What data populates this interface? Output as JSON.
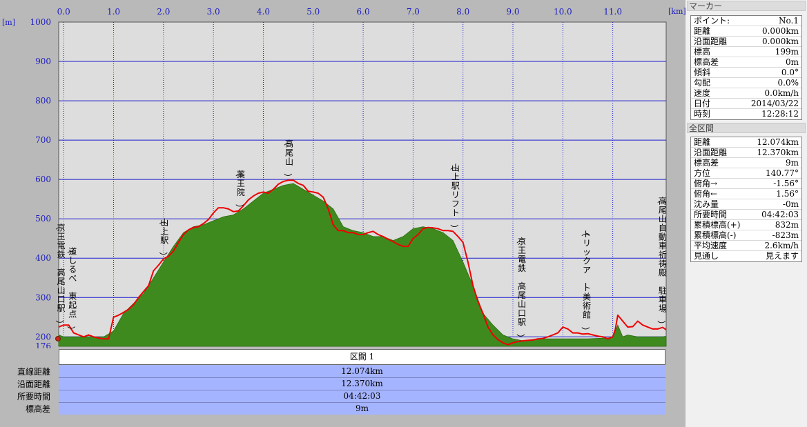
{
  "chart_data": {
    "type": "area",
    "x_unit": "[km]",
    "y_unit": "[m]",
    "x_ticks": [
      "0.0",
      "1.0",
      "2.0",
      "3.0",
      "4.0",
      "5.0",
      "6.0",
      "7.0",
      "8.0",
      "9.0",
      "10.0",
      "11.0"
    ],
    "y_ticks": [
      "1000",
      "900",
      "800",
      "700",
      "600",
      "500",
      "400",
      "300",
      "200",
      "176"
    ],
    "xlim": [
      -0.1,
      12.07
    ],
    "ylim": [
      176,
      1000
    ],
    "grid": true,
    "series": [
      {
        "name": "",
        "type": "area",
        "color": "#3f8a1f",
        "x": [
          -0.1,
          0.0,
          0.3,
          0.6,
          0.8,
          1.0,
          1.2,
          1.4,
          1.6,
          1.8,
          2.0,
          2.2,
          2.4,
          2.6,
          2.8,
          3.0,
          3.2,
          3.4,
          3.6,
          3.8,
          4.0,
          4.2,
          4.4,
          4.6,
          4.8,
          5.0,
          5.2,
          5.4,
          5.6,
          5.8,
          6.0,
          6.2,
          6.4,
          6.6,
          6.8,
          7.0,
          7.2,
          7.4,
          7.6,
          7.8,
          8.0,
          8.2,
          8.4,
          8.6,
          8.8,
          9.0,
          9.2,
          9.5,
          10.0,
          10.5,
          11.0,
          11.1,
          11.2,
          11.3,
          11.5,
          12.0,
          12.07
        ],
        "values": [
          205,
          200,
          200,
          200,
          200,
          215,
          260,
          285,
          310,
          350,
          390,
          430,
          465,
          480,
          485,
          495,
          505,
          510,
          525,
          545,
          565,
          575,
          585,
          590,
          575,
          560,
          545,
          525,
          480,
          470,
          465,
          455,
          455,
          445,
          455,
          475,
          480,
          475,
          465,
          445,
          390,
          330,
          260,
          230,
          205,
          195,
          190,
          195,
          195,
          195,
          198,
          230,
          200,
          205,
          200,
          200,
          202
        ]
      },
      {
        "name": "",
        "type": "line",
        "color": "#ee0000",
        "x": [
          -0.1,
          0.0,
          0.1,
          0.2,
          0.3,
          0.4,
          0.5,
          0.6,
          0.7,
          0.8,
          0.9,
          1.0,
          1.1,
          1.2,
          1.3,
          1.4,
          1.5,
          1.6,
          1.7,
          1.8,
          1.9,
          2.0,
          2.1,
          2.2,
          2.3,
          2.4,
          2.5,
          2.6,
          2.7,
          2.8,
          2.9,
          3.0,
          3.1,
          3.2,
          3.3,
          3.4,
          3.5,
          3.6,
          3.7,
          3.8,
          3.9,
          4.0,
          4.1,
          4.2,
          4.3,
          4.4,
          4.5,
          4.6,
          4.7,
          4.8,
          4.9,
          5.0,
          5.1,
          5.2,
          5.3,
          5.4,
          5.5,
          5.6,
          5.7,
          5.8,
          5.9,
          6.0,
          6.1,
          6.2,
          6.3,
          6.4,
          6.5,
          6.6,
          6.7,
          6.8,
          6.9,
          7.0,
          7.1,
          7.2,
          7.3,
          7.4,
          7.5,
          7.6,
          7.7,
          7.8,
          7.9,
          8.0,
          8.1,
          8.2,
          8.3,
          8.4,
          8.5,
          8.6,
          8.7,
          8.8,
          8.9,
          9.0,
          9.1,
          9.2,
          9.3,
          9.4,
          9.5,
          9.6,
          9.7,
          9.8,
          9.9,
          10.0,
          10.1,
          10.2,
          10.3,
          10.4,
          10.5,
          10.6,
          10.7,
          10.8,
          10.9,
          11.0,
          11.05,
          11.1,
          11.2,
          11.3,
          11.4,
          11.5,
          11.6,
          11.7,
          11.8,
          11.9,
          12.0,
          12.07
        ],
        "values": [
          225,
          230,
          230,
          210,
          205,
          200,
          205,
          200,
          197,
          195,
          195,
          250,
          255,
          262,
          270,
          282,
          300,
          315,
          330,
          368,
          382,
          398,
          405,
          418,
          440,
          460,
          472,
          478,
          480,
          488,
          498,
          515,
          528,
          528,
          525,
          518,
          520,
          533,
          548,
          558,
          565,
          568,
          565,
          575,
          588,
          595,
          598,
          598,
          590,
          585,
          570,
          568,
          565,
          555,
          525,
          485,
          470,
          470,
          465,
          465,
          460,
          460,
          465,
          468,
          460,
          455,
          448,
          442,
          435,
          430,
          430,
          450,
          460,
          475,
          478,
          477,
          475,
          470,
          470,
          468,
          455,
          440,
          390,
          330,
          290,
          260,
          225,
          205,
          193,
          185,
          180,
          185,
          188,
          190,
          191,
          192,
          195,
          196,
          200,
          205,
          210,
          225,
          220,
          210,
          210,
          207,
          208,
          205,
          202,
          200,
          195,
          200,
          218,
          255,
          240,
          225,
          226,
          240,
          230,
          225,
          220,
          220,
          224,
          218
        ]
      }
    ],
    "annotations": [
      {
        "x": -0.05,
        "text": "（京王電鉄 高尾山口駅）"
      },
      {
        "x": 0.18,
        "text": "（道しるべ 東起点）"
      },
      {
        "x": 2.02,
        "text": "（山上駅）"
      },
      {
        "x": 3.55,
        "text": "（薬王院）"
      },
      {
        "x": 4.52,
        "text": "（高尾山）"
      },
      {
        "x": 7.85,
        "text": "（山上駅リフト）"
      },
      {
        "x": 9.18,
        "text": "（京王電鉄 高尾山口駅）"
      },
      {
        "x": 10.48,
        "text": "（トリックアート美術館）"
      },
      {
        "x": 12.0,
        "text": "（高尾山自動車祈祷殿 駐車場）"
      }
    ]
  },
  "section_label": "区間 1",
  "summary_table": [
    {
      "label": "直線距離",
      "value": "12.074km"
    },
    {
      "label": "沿面距離",
      "value": "12.370km"
    },
    {
      "label": "所要時間",
      "value": "04:42:03"
    },
    {
      "label": "標高差",
      "value": "9m"
    }
  ],
  "marker_panel": {
    "title": "マーカー",
    "rows": [
      {
        "label": "ポイント:",
        "value": "No.1"
      },
      {
        "label": "距離",
        "value": "0.000km"
      },
      {
        "label": "沿面距離",
        "value": "0.000km"
      },
      {
        "label": "標高",
        "value": "199m"
      },
      {
        "label": "標高差",
        "value": "0m"
      },
      {
        "label": "傾斜",
        "value": "0.0°"
      },
      {
        "label": "勾配",
        "value": "0.0%"
      },
      {
        "label": "速度",
        "value": "0.0km/h"
      },
      {
        "label": "日付",
        "value": "2014/03/22"
      },
      {
        "label": "時刻",
        "value": "12:28:12"
      }
    ]
  },
  "total_panel": {
    "title": "全区間",
    "rows": [
      {
        "label": "距離",
        "value": "12.074km"
      },
      {
        "label": "沿面距離",
        "value": "12.370km"
      },
      {
        "label": "標高差",
        "value": "9m"
      },
      {
        "label": "方位",
        "value": "140.77°"
      },
      {
        "label": "俯角→",
        "value": "-1.56°"
      },
      {
        "label": "俯角←",
        "value": "1.56°"
      },
      {
        "label": "沈み量",
        "value": "-0m"
      },
      {
        "label": "所要時間",
        "value": "04:42:03"
      },
      {
        "label": "累積標高(+)",
        "value": "832m"
      },
      {
        "label": "累積標高(-)",
        "value": "-823m"
      },
      {
        "label": "平均速度",
        "value": "2.6km/h"
      },
      {
        "label": "見通し",
        "value": "見えます"
      }
    ]
  },
  "colors": {
    "plot_bg": "#dddddd",
    "grid": "#1c1cd0",
    "terrain": "#3f8a1f",
    "route": "#ee0000",
    "axis_text": "#1c1cc0",
    "table_bg": "#a5b4ff"
  }
}
